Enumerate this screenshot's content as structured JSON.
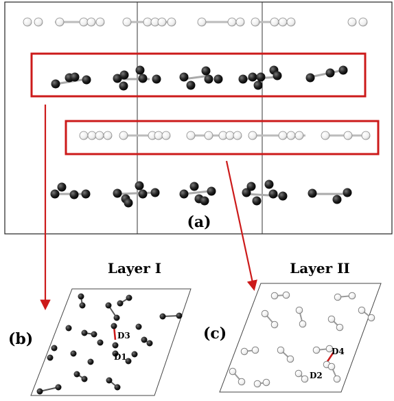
{
  "panel_a": {
    "label": "(a)"
  },
  "panel_b": {
    "label": "(b)",
    "title": "Layer I",
    "tag_d3": "D3",
    "tag_d1": "D1"
  },
  "panel_c": {
    "label": "(c)",
    "title": "Layer II",
    "tag_d4": "D4",
    "tag_d2": "D2"
  },
  "colors": {
    "highlight": "#cc1a1a",
    "dark_atom": "#111111",
    "light_atom": "#f2f2f2",
    "bond": "#b8b8b8"
  }
}
